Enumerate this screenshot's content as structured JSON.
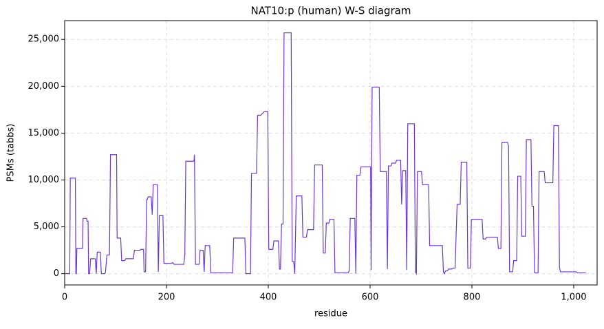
{
  "chart_data": {
    "type": "line",
    "title": "NAT10:p (human) W-S diagram",
    "xlabel": "residue",
    "ylabel": "PSMs (tabbs)",
    "grid": true,
    "xlim": [
      0,
      1046
    ],
    "ylim": [
      -1200,
      27000
    ],
    "xticks": [
      0,
      200,
      400,
      600,
      800,
      {
        "value": 1000,
        "label": "1,000"
      }
    ],
    "yticks": [
      0,
      {
        "value": 5000,
        "label": "5,000"
      },
      {
        "value": 10000,
        "label": "10,000"
      },
      {
        "value": 15000,
        "label": "15,000"
      },
      {
        "value": 20000,
        "label": "20,000"
      },
      {
        "value": 25000,
        "label": "25,000"
      }
    ],
    "series": [
      {
        "color": "#6a35d8",
        "x": [
          1,
          10,
          11,
          21,
          22,
          23,
          24,
          35,
          36,
          43,
          44,
          46,
          47,
          49,
          51,
          60,
          62,
          64,
          70,
          72,
          78,
          80,
          83,
          88,
          90,
          102,
          103,
          110,
          112,
          118,
          120,
          135,
          137,
          148,
          150,
          155,
          156,
          159,
          161,
          162,
          164,
          170,
          172,
          174,
          182,
          184,
          186,
          193,
          195,
          210,
          212,
          215,
          234,
          236,
          238,
          254,
          255,
          257,
          264,
          266,
          272,
          274,
          276,
          285,
          287,
          330,
          332,
          354,
          356,
          365,
          367,
          377,
          379,
          385,
          392,
          399,
          401,
          409,
          411,
          420,
          422,
          424,
          426,
          429,
          431,
          445,
          447,
          450,
          452,
          455,
          466,
          468,
          475,
          477,
          489,
          491,
          506,
          508,
          512,
          514,
          519,
          521,
          529,
          531,
          557,
          559,
          561,
          570,
          572,
          574,
          580,
          582,
          601,
          602,
          604,
          618,
          620,
          632,
          634,
          636,
          641,
          643,
          650,
          652,
          660,
          662,
          664,
          670,
          672,
          674,
          687,
          689,
          691,
          693,
          701,
          703,
          715,
          717,
          742,
          744,
          746,
          748,
          752,
          754,
          760,
          763,
          767,
          769,
          771,
          777,
          779,
          790,
          792,
          797,
          799,
          820,
          822,
          827,
          829,
          850,
          852,
          857,
          859,
          870,
          872,
          874,
          880,
          882,
          888,
          890,
          896,
          898,
          905,
          907,
          916,
          918,
          921,
          923,
          930,
          932,
          942,
          944,
          959,
          961,
          970,
          972,
          974,
          1005,
          1007,
          1024
        ],
        "values": [
          0,
          0,
          10200,
          10200,
          0,
          0,
          2700,
          2700,
          5900,
          5900,
          5600,
          5600,
          0,
          0,
          1600,
          1600,
          0,
          2300,
          2300,
          0,
          0,
          100,
          2000,
          2000,
          12700,
          12700,
          3800,
          3800,
          1400,
          1400,
          1600,
          1600,
          2500,
          2500,
          2600,
          2600,
          200,
          200,
          7900,
          7900,
          8200,
          8200,
          6300,
          9500,
          9500,
          200,
          6200,
          6200,
          1100,
          1100,
          1200,
          1000,
          1000,
          2000,
          12000,
          12000,
          12700,
          1000,
          1000,
          2500,
          2500,
          200,
          3000,
          3000,
          100,
          100,
          3800,
          3800,
          0,
          0,
          10700,
          10700,
          16900,
          16900,
          17300,
          17300,
          2600,
          2600,
          3500,
          3500,
          500,
          500,
          5300,
          5300,
          25700,
          25700,
          1300,
          1300,
          0,
          8300,
          8300,
          3900,
          3900,
          4700,
          4700,
          11600,
          11600,
          2200,
          2200,
          5400,
          5400,
          5800,
          5800,
          100,
          100,
          300,
          5900,
          5900,
          0,
          10500,
          10500,
          11400,
          11400,
          400,
          19900,
          19900,
          10900,
          10900,
          500,
          11500,
          11500,
          11800,
          11800,
          12100,
          12100,
          7400,
          11000,
          11000,
          400,
          16000,
          16000,
          200,
          0,
          10900,
          10900,
          9500,
          9500,
          3000,
          3000,
          200,
          0,
          300,
          300,
          500,
          500,
          600,
          600,
          4100,
          7400,
          7400,
          11900,
          11900,
          600,
          600,
          5800,
          5800,
          3700,
          3700,
          3900,
          3900,
          2700,
          2700,
          14000,
          14000,
          13600,
          200,
          200,
          1400,
          1400,
          10400,
          10400,
          4000,
          4000,
          14300,
          14300,
          7200,
          7200,
          100,
          100,
          10900,
          10900,
          9700,
          9700,
          15800,
          15800,
          700,
          200,
          200,
          100,
          100
        ]
      }
    ]
  }
}
